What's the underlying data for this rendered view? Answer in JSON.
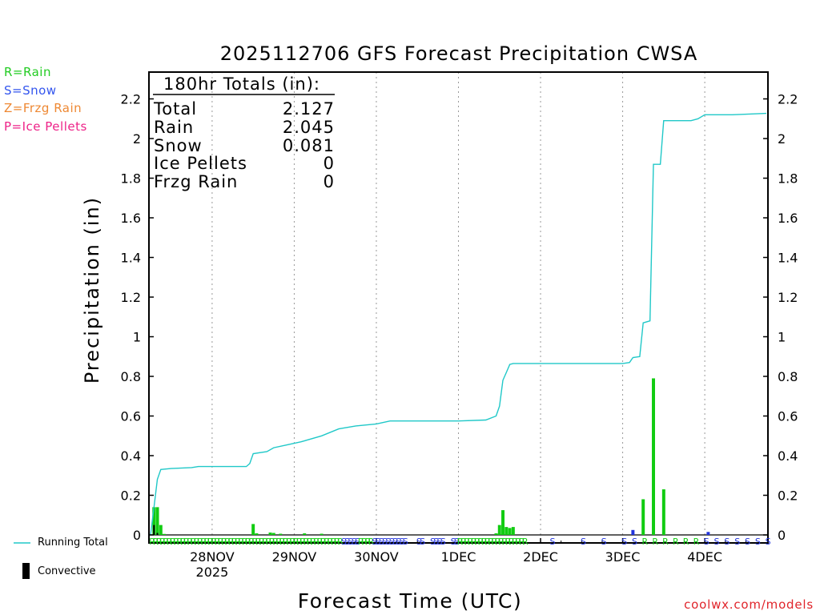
{
  "legend_types": [
    {
      "text": "R=Rain",
      "color": "#22cc22"
    },
    {
      "text": "S=Snow",
      "color": "#3355ee"
    },
    {
      "text": "Z=Frzg Rain",
      "color": "#ee8833"
    },
    {
      "text": "P=Ice Pellets",
      "color": "#ee2288"
    }
  ],
  "totals": {
    "header": "180hr Totals (in):",
    "rows": [
      {
        "label": "Total",
        "value": "2.127"
      },
      {
        "label": "Rain",
        "value": "2.045"
      },
      {
        "label": "Snow",
        "value": "0.081"
      },
      {
        "label": "Ice Pellets",
        "value": "0"
      },
      {
        "label": "Frzg Rain",
        "value": "0"
      }
    ]
  },
  "footer": {
    "running_total_label": "Running Total",
    "convective_label": "Convective",
    "credit": "coolwx.com/models"
  },
  "colors": {
    "running_total": "#20c8c8",
    "rain": "#11cc11",
    "snow": "#2233dd",
    "convective": "#000000",
    "grid": "#999999"
  },
  "chart_data": {
    "type": "bar",
    "title": "2025112706 GFS Forecast Precipitation CWSA",
    "xlabel": "Forecast Time (UTC)",
    "ylabel": "Precipitation (in)",
    "ylim": [
      0,
      2.3
    ],
    "xlim_hours": [
      0,
      180
    ],
    "y_ticks": [
      0,
      0.2,
      0.4,
      0.6,
      0.8,
      1,
      1.2,
      1.4,
      1.6,
      1.8,
      2,
      2.2
    ],
    "y_tick_labels": [
      "0",
      "0.2",
      "0.4",
      "0.6",
      "0.8",
      "1",
      "1.2",
      "1.4",
      "1.6",
      "1.8",
      "2",
      "2.2"
    ],
    "x_ticks": [
      {
        "hour": 18,
        "label": "28NOV",
        "sub": "2025"
      },
      {
        "hour": 42,
        "label": "29NOV",
        "sub": ""
      },
      {
        "hour": 66,
        "label": "30NOV",
        "sub": ""
      },
      {
        "hour": 90,
        "label": "1DEC",
        "sub": ""
      },
      {
        "hour": 114,
        "label": "2DEC",
        "sub": ""
      },
      {
        "hour": 138,
        "label": "3DEC",
        "sub": ""
      },
      {
        "hour": 162,
        "label": "4DEC",
        "sub": ""
      }
    ],
    "series": [
      {
        "name": "Running Total",
        "type": "line",
        "points": [
          [
            0,
            0.0
          ],
          [
            1,
            0.14
          ],
          [
            2,
            0.28
          ],
          [
            3,
            0.33
          ],
          [
            6,
            0.335
          ],
          [
            12,
            0.34
          ],
          [
            14,
            0.345
          ],
          [
            24,
            0.345
          ],
          [
            28,
            0.345
          ],
          [
            29,
            0.36
          ],
          [
            30,
            0.41
          ],
          [
            34,
            0.42
          ],
          [
            36,
            0.44
          ],
          [
            40,
            0.455
          ],
          [
            44,
            0.47
          ],
          [
            50,
            0.5
          ],
          [
            55,
            0.535
          ],
          [
            60,
            0.55
          ],
          [
            66,
            0.56
          ],
          [
            70,
            0.575
          ],
          [
            80,
            0.575
          ],
          [
            90,
            0.575
          ],
          [
            98,
            0.58
          ],
          [
            101,
            0.6
          ],
          [
            102,
            0.65
          ],
          [
            103,
            0.78
          ],
          [
            104,
            0.82
          ],
          [
            105,
            0.86
          ],
          [
            106,
            0.865
          ],
          [
            138,
            0.865
          ],
          [
            140,
            0.87
          ],
          [
            141,
            0.895
          ],
          [
            143,
            0.9
          ],
          [
            144,
            1.07
          ],
          [
            146,
            1.08
          ],
          [
            147,
            1.87
          ],
          [
            149,
            1.87
          ],
          [
            150,
            2.09
          ],
          [
            158,
            2.09
          ],
          [
            160,
            2.1
          ],
          [
            162,
            2.12
          ],
          [
            170,
            2.12
          ],
          [
            180,
            2.127
          ]
        ]
      },
      {
        "name": "Rain",
        "type": "bar",
        "bars": [
          [
            1,
            0.14
          ],
          [
            2,
            0.14
          ],
          [
            3,
            0.05
          ],
          [
            4,
            0.005
          ],
          [
            30,
            0.055
          ],
          [
            31,
            0.008
          ],
          [
            35,
            0.012
          ],
          [
            36,
            0.01
          ],
          [
            38,
            0.006
          ],
          [
            45,
            0.008
          ],
          [
            50,
            0.006
          ],
          [
            101,
            0.008
          ],
          [
            102,
            0.05
          ],
          [
            103,
            0.125
          ],
          [
            104,
            0.04
          ],
          [
            105,
            0.035
          ],
          [
            106,
            0.04
          ],
          [
            144,
            0.18
          ],
          [
            147,
            0.79
          ],
          [
            150,
            0.23
          ]
        ]
      },
      {
        "name": "Snow",
        "type": "bar",
        "bars": [
          [
            141,
            0.025
          ],
          [
            163,
            0.015
          ]
        ]
      },
      {
        "name": "Convective",
        "type": "bar",
        "bars": [
          [
            1,
            0.05
          ],
          [
            2,
            0.01
          ]
        ]
      }
    ],
    "ptype_markers": [
      {
        "hour_start": 0,
        "hour_end": 21,
        "step": 1,
        "symbol": "R",
        "color": "#11cc11"
      },
      {
        "hour_start": 21,
        "hour_end": 56,
        "step": 1,
        "symbol": "R",
        "color": "#11cc11"
      },
      {
        "hour_start": 56,
        "hour_end": 61,
        "step": 1,
        "symbol": "S",
        "color": "#2233dd"
      },
      {
        "hour_start": 61,
        "hour_end": 65,
        "step": 1,
        "symbol": "R",
        "color": "#11cc11"
      },
      {
        "hour_start": 65,
        "hour_end": 75,
        "step": 1,
        "symbol": "S",
        "color": "#2233dd"
      },
      {
        "hour_start": 78,
        "hour_end": 80,
        "step": 1,
        "symbol": "S",
        "color": "#2233dd"
      },
      {
        "hour_start": 82,
        "hour_end": 86,
        "step": 1,
        "symbol": "S",
        "color": "#2233dd"
      },
      {
        "hour_start": 88,
        "hour_end": 90,
        "step": 1,
        "symbol": "S",
        "color": "#2233dd"
      },
      {
        "hour_start": 90,
        "hour_end": 110,
        "step": 1,
        "symbol": "R",
        "color": "#11cc11"
      },
      {
        "hour_start": 117,
        "hour_end": 118,
        "step": 1,
        "symbol": "S",
        "color": "#2233dd"
      },
      {
        "hour_start": 126,
        "hour_end": 127,
        "step": 1,
        "symbol": "S",
        "color": "#2233dd"
      },
      {
        "hour_start": 132,
        "hour_end": 133,
        "step": 1,
        "symbol": "S",
        "color": "#2233dd"
      },
      {
        "hour_start": 138,
        "hour_end": 142,
        "step": 3,
        "symbol": "S",
        "color": "#2233dd"
      },
      {
        "hour_start": 144,
        "hour_end": 162,
        "step": 3,
        "symbol": "R",
        "color": "#11cc11"
      },
      {
        "hour_start": 162,
        "hour_end": 181,
        "step": 3,
        "symbol": "S",
        "color": "#2233dd"
      }
    ]
  }
}
